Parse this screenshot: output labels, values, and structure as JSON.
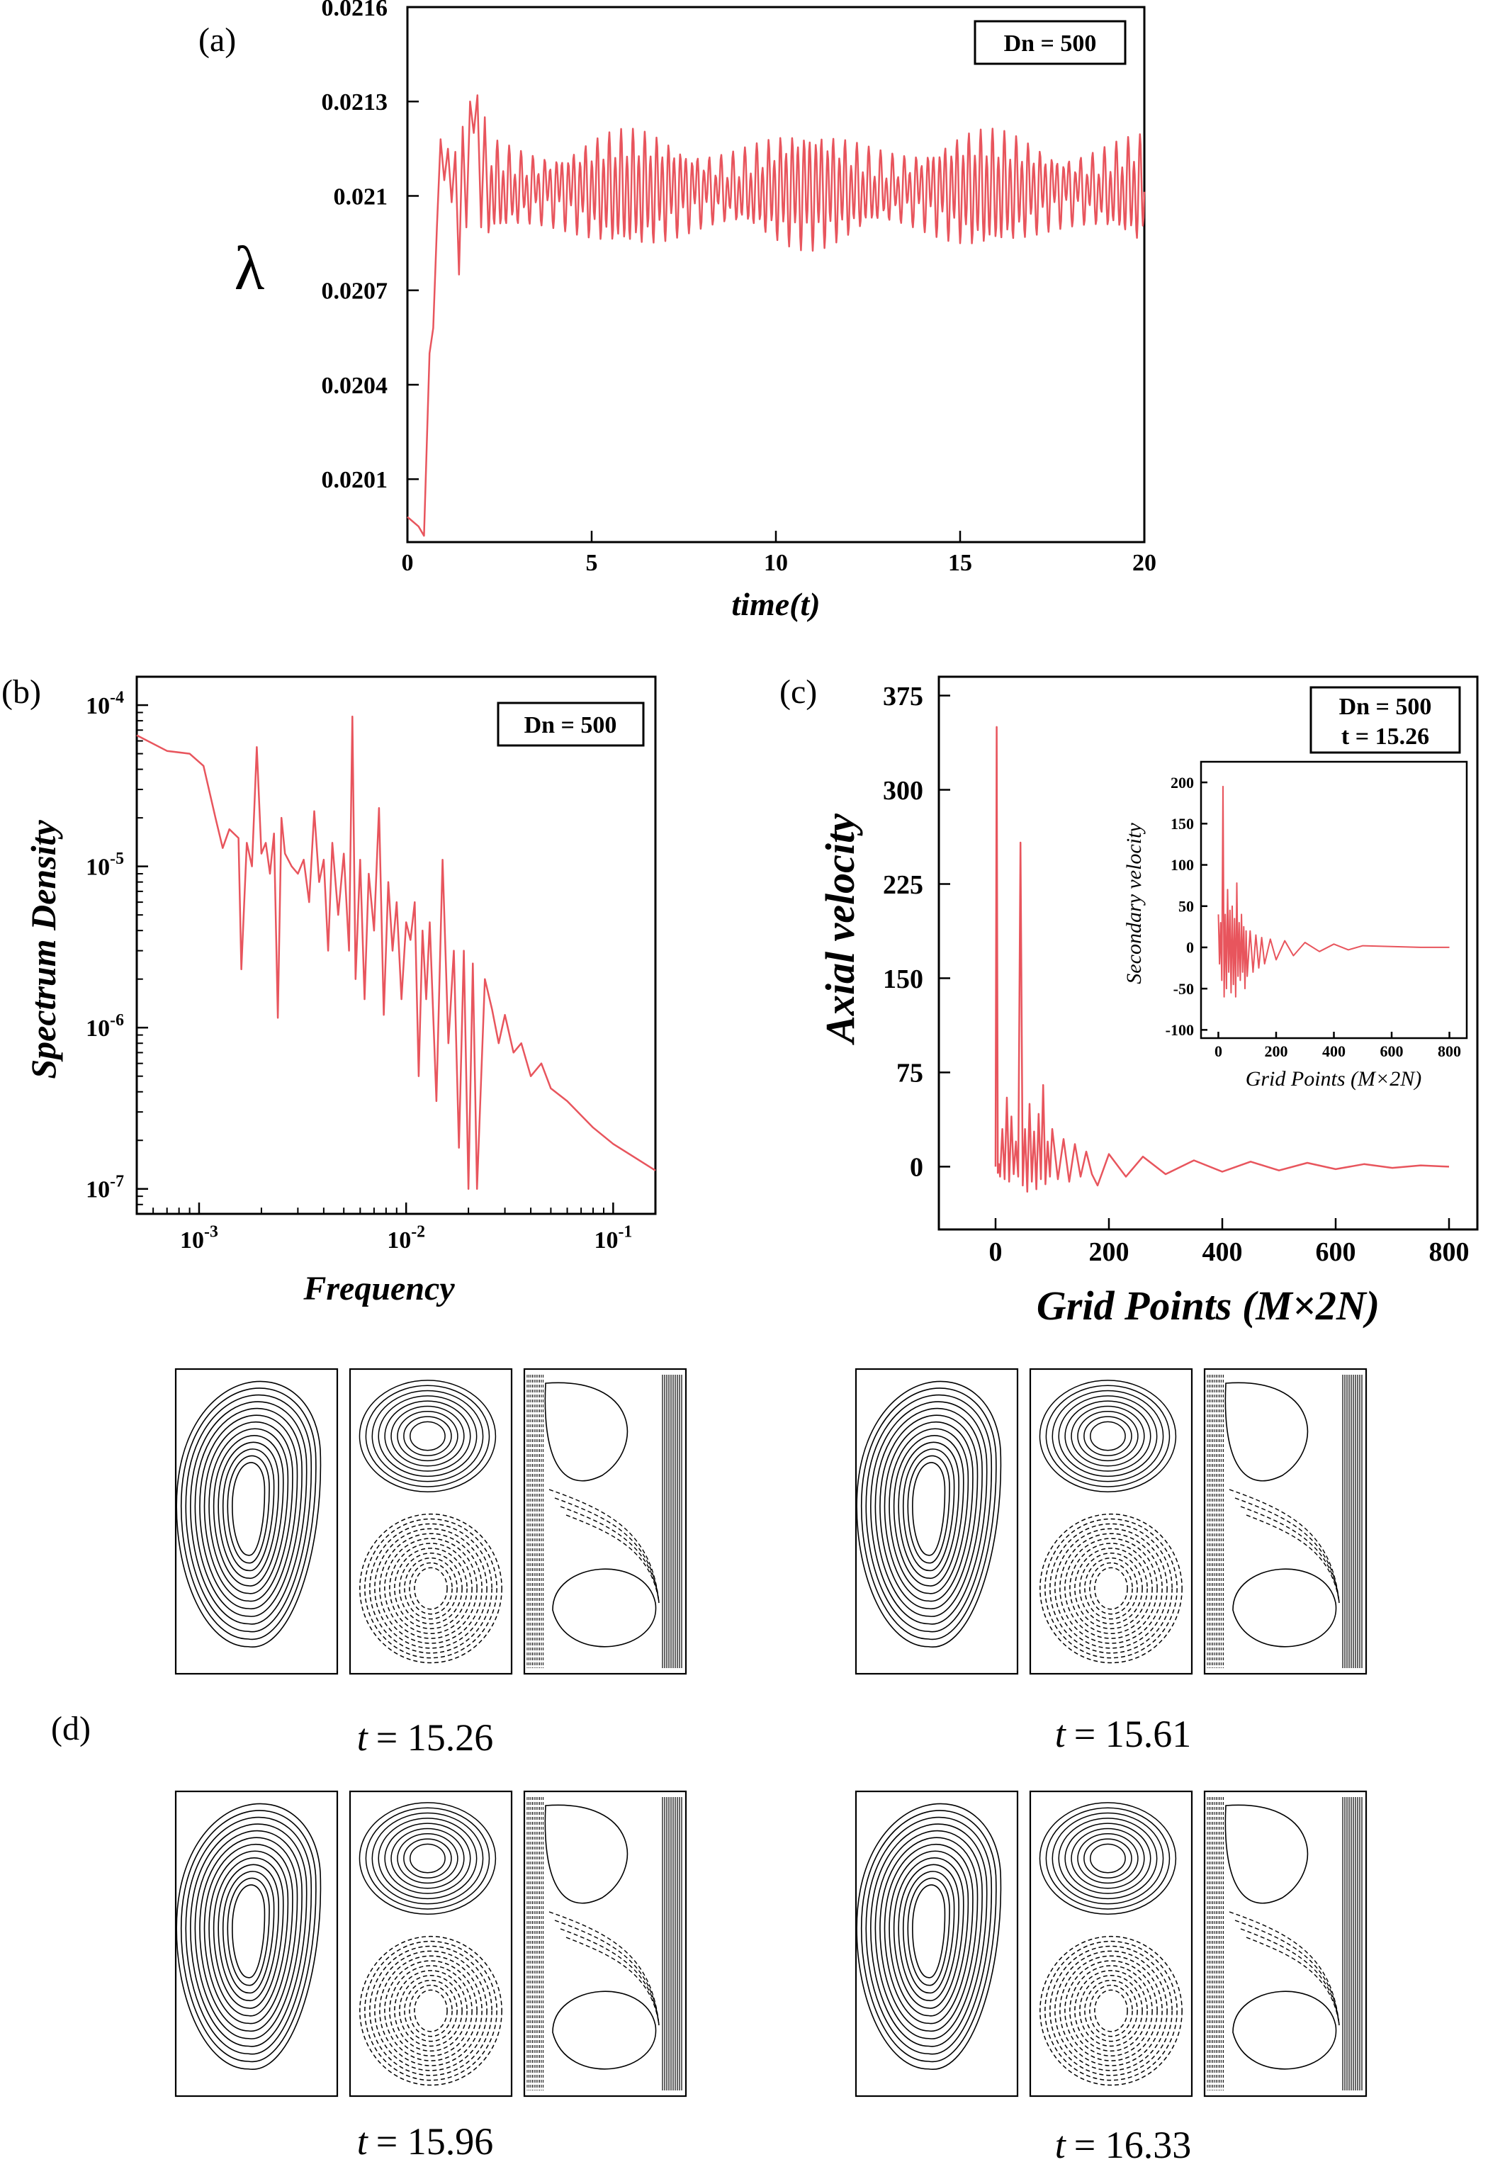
{
  "panel_labels": {
    "a": "(a)",
    "b": "(b)",
    "c": "(c)",
    "d": "(d)"
  },
  "chart_data": [
    {
      "id": "a",
      "type": "line",
      "xlabel": "time(t)",
      "ylabel": "λ",
      "legend": "Dn = 500",
      "xlim": [
        0,
        20
      ],
      "ylim": [
        0.0199,
        0.0216
      ],
      "xticks": [
        0,
        5,
        10,
        15,
        20
      ],
      "yticks": [
        0.0201,
        0.0204,
        0.0207,
        0.021,
        0.0213,
        0.0216
      ],
      "xtick_labels": [
        "0",
        "5",
        "10",
        "15",
        "20"
      ],
      "ytick_labels": [
        "0.0201",
        "0.0204",
        "0.0207",
        "0.021",
        "0.0213",
        "0.0216"
      ],
      "series": [
        {
          "color": "#e8555d",
          "x": [
            0,
            0.3,
            0.45,
            0.6,
            0.7,
            0.8,
            0.9,
            1.0,
            1.1,
            1.2,
            1.3,
            1.4,
            1.5,
            1.6,
            1.7,
            1.8,
            1.9,
            2.0,
            2.1,
            2.2,
            2.4,
            2.6,
            2.8,
            3.0,
            4.0,
            6.0,
            8.0,
            10.0,
            12.0,
            14.0,
            16.0,
            18.0,
            20.0
          ],
          "y": [
            0.01998,
            0.01995,
            0.01992,
            0.0205,
            0.02058,
            0.0209,
            0.02118,
            0.02105,
            0.02115,
            0.02098,
            0.02114,
            0.02075,
            0.02122,
            0.0209,
            0.0213,
            0.0212,
            0.02132,
            0.0209,
            0.02125,
            0.02085,
            0.0212,
            0.02088,
            0.02116,
            0.02086,
            0.0212,
            0.0212,
            0.0212,
            0.0212,
            0.0212,
            0.0212,
            0.0212,
            0.0212,
            0.0212
          ],
          "oscillation": {
            "from_t": 2.2,
            "to_t": 20,
            "mean": 0.02102,
            "amplitude": 0.00015,
            "period": 0.16
          }
        }
      ]
    },
    {
      "id": "b",
      "type": "line",
      "xlabel": "Frequency",
      "ylabel": "Spectrum Density",
      "legend": "Dn = 500",
      "xscale": "log",
      "yscale": "log",
      "xlim": [
        0.0005,
        0.16
      ],
      "ylim": [
        7e-08,
        0.00015
      ],
      "xticks": [
        0.001,
        0.01,
        0.1
      ],
      "yticks": [
        1e-07,
        1e-06,
        1e-05,
        0.0001
      ],
      "xtick_labels": [
        [
          "10",
          "-3"
        ],
        [
          "10",
          "-2"
        ],
        [
          "10",
          "-1"
        ]
      ],
      "ytick_labels": [
        [
          "10",
          "-7"
        ],
        [
          "10",
          "-6"
        ],
        [
          "10",
          "-5"
        ],
        [
          "10",
          "-4"
        ]
      ],
      "series": [
        {
          "color": "#e8555d",
          "x": [
            0.0005,
            0.0007,
            0.0009,
            0.00105,
            0.0012,
            0.0013,
            0.0014,
            0.00155,
            0.0016,
            0.0017,
            0.0018,
            0.0019,
            0.002,
            0.0021,
            0.0022,
            0.0023,
            0.0024,
            0.0025,
            0.0026,
            0.0028,
            0.003,
            0.0032,
            0.0034,
            0.0036,
            0.0038,
            0.004,
            0.0042,
            0.0044,
            0.0047,
            0.005,
            0.0053,
            0.0055,
            0.0057,
            0.006,
            0.0063,
            0.0066,
            0.007,
            0.0074,
            0.0078,
            0.0082,
            0.0086,
            0.009,
            0.0095,
            0.01,
            0.0105,
            0.011,
            0.0115,
            0.012,
            0.0125,
            0.013,
            0.014,
            0.015,
            0.016,
            0.017,
            0.018,
            0.019,
            0.02,
            0.021,
            0.022,
            0.024,
            0.026,
            0.028,
            0.03,
            0.033,
            0.036,
            0.04,
            0.045,
            0.05,
            0.06,
            0.08,
            0.1,
            0.16
          ],
          "y": [
            6.5e-05,
            5.2e-05,
            5e-05,
            4.2e-05,
            2e-05,
            1.3e-05,
            1.7e-05,
            1.5e-05,
            2.3e-06,
            1.4e-05,
            1e-05,
            5.5e-05,
            1.2e-05,
            1.4e-05,
            9e-06,
            1.6e-05,
            1.15e-06,
            2e-05,
            1.2e-05,
            1e-05,
            9e-06,
            1.1e-05,
            6e-06,
            2.2e-05,
            8e-06,
            1.1e-05,
            3e-06,
            1.4e-05,
            5e-06,
            1.2e-05,
            3e-06,
            8.5e-05,
            2e-06,
            1.1e-05,
            1.5e-06,
            9e-06,
            4e-06,
            2.3e-05,
            1.2e-06,
            8e-06,
            3e-06,
            6e-06,
            1.5e-06,
            4.5e-06,
            3.5e-06,
            6e-06,
            5e-07,
            4e-06,
            1.5e-06,
            4.5e-06,
            3.5e-07,
            1.1e-05,
            8e-07,
            3e-06,
            1.8e-07,
            3e-06,
            1e-07,
            2.5e-06,
            1e-07,
            2e-06,
            1.3e-06,
            8e-07,
            1.2e-06,
            7e-07,
            8e-07,
            5e-07,
            6e-07,
            4.2e-07,
            3.5e-07,
            2.4e-07,
            1.9e-07,
            1.3e-07
          ]
        }
      ]
    },
    {
      "id": "c",
      "type": "line",
      "xlabel": "Grid Points (M×2N)",
      "ylabel": "Axial velocity",
      "legend": [
        "Dn = 500",
        "t = 15.26"
      ],
      "xlim": [
        -100,
        850
      ],
      "ylim": [
        -50,
        390
      ],
      "xticks": [
        0,
        200,
        400,
        600,
        800
      ],
      "yticks": [
        0,
        75,
        150,
        225,
        300,
        375
      ],
      "xtick_labels": [
        "0",
        "200",
        "400",
        "600",
        "800"
      ],
      "ytick_labels": [
        "0",
        "75",
        "150",
        "225",
        "300",
        "375"
      ],
      "series": [
        {
          "color": "#e8555d",
          "x": [
            0,
            2,
            4,
            6,
            8,
            12,
            16,
            20,
            24,
            28,
            32,
            36,
            40,
            44,
            48,
            52,
            56,
            60,
            64,
            68,
            72,
            76,
            80,
            84,
            88,
            92,
            96,
            100,
            110,
            120,
            130,
            140,
            150,
            160,
            170,
            180,
            200,
            230,
            260,
            300,
            350,
            400,
            450,
            500,
            550,
            600,
            650,
            700,
            750,
            800
          ],
          "y": [
            0,
            350,
            -5,
            2,
            -8,
            30,
            -10,
            55,
            -12,
            40,
            -6,
            20,
            -8,
            258,
            -15,
            30,
            -20,
            50,
            -12,
            28,
            -18,
            42,
            -10,
            65,
            -14,
            20,
            -8,
            30,
            -10,
            22,
            -12,
            18,
            -8,
            12,
            -6,
            -15,
            10,
            -8,
            8,
            -6,
            5,
            -4,
            4,
            -3,
            3,
            -2,
            2,
            -1,
            1,
            0
          ]
        }
      ],
      "inset": {
        "xlabel": "Grid Points (M×2N)",
        "ylabel": "Secondary velocity",
        "xlim": [
          -60,
          860
        ],
        "ylim": [
          -110,
          225
        ],
        "xticks": [
          0,
          200,
          400,
          600,
          800
        ],
        "yticks": [
          -100,
          -50,
          0,
          50,
          100,
          150,
          200
        ],
        "xtick_labels": [
          "0",
          "200",
          "400",
          "600",
          "800"
        ],
        "ytick_labels": [
          "-100",
          "-50",
          "0",
          "50",
          "100",
          "150",
          "200"
        ],
        "series": [
          {
            "color": "#e8555d",
            "x": [
              0,
              4,
              8,
              12,
              16,
              20,
              24,
              28,
              32,
              36,
              40,
              44,
              48,
              52,
              56,
              60,
              64,
              68,
              72,
              76,
              80,
              84,
              88,
              92,
              96,
              100,
              110,
              120,
              130,
              140,
              150,
              160,
              180,
              200,
              230,
              260,
              300,
              350,
              400,
              450,
              500,
              600,
              700,
              800
            ],
            "y": [
              40,
              -20,
              30,
              -40,
              195,
              -60,
              40,
              -50,
              70,
              -30,
              45,
              -55,
              50,
              -45,
              35,
              -60,
              78,
              -35,
              30,
              -40,
              40,
              -30,
              25,
              -50,
              20,
              -35,
              20,
              -30,
              15,
              -25,
              12,
              -20,
              10,
              -15,
              8,
              -10,
              6,
              -5,
              4,
              -3,
              2,
              1,
              0,
              0
            ]
          }
        ]
      }
    }
  ],
  "contours": [
    {
      "caption_t": "t",
      "caption_val": "= 15.26"
    },
    {
      "caption_t": "t",
      "caption_val": "= 15.61"
    },
    {
      "caption_t": "t",
      "caption_val": "= 15.96"
    },
    {
      "caption_t": "t",
      "caption_val": "= 16.33"
    }
  ]
}
